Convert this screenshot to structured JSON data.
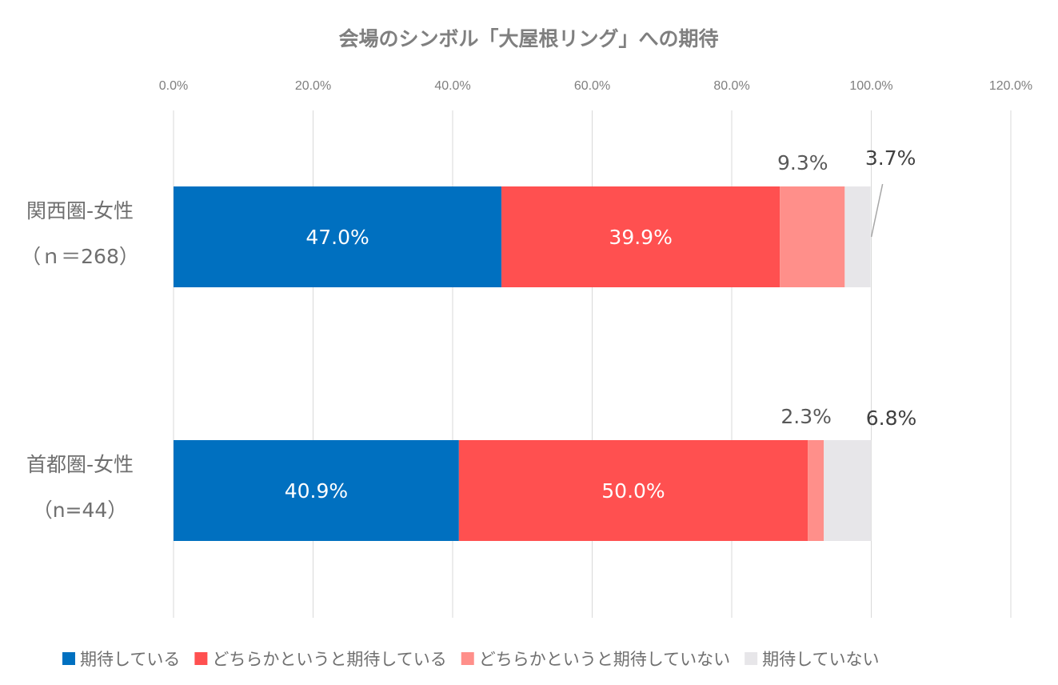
{
  "chart_data": {
    "type": "bar",
    "orientation": "horizontal",
    "stacked": true,
    "title": "会場のシンボル「大屋根リング」への期待",
    "xlim": [
      0,
      120
    ],
    "x_ticks": [
      0,
      20,
      40,
      60,
      80,
      100,
      120
    ],
    "x_tick_labels": [
      "0.0%",
      "20.0%",
      "40.0%",
      "60.0%",
      "80.0%",
      "100.0%",
      "120.0%"
    ],
    "grid": true,
    "legend_position": "bottom",
    "categories": [
      {
        "line1": "関西圏-女性",
        "line2": "（ｎ＝268）"
      },
      {
        "line1": "首都圏-女性",
        "line2": "（n=44）"
      }
    ],
    "series": [
      {
        "name": "期待している",
        "color": "#0070c0",
        "values": [
          47.0,
          40.9
        ],
        "labels": [
          "47.0%",
          "40.9%"
        ],
        "label_position": "inside"
      },
      {
        "name": "どちらかというと期待している",
        "color": "#ff5050",
        "values": [
          39.9,
          50.0
        ],
        "labels": [
          "39.9%",
          "50.0%"
        ],
        "label_position": "inside"
      },
      {
        "name": "どちらかというと期待していない",
        "color": "#ff8f8a",
        "values": [
          9.3,
          2.3
        ],
        "labels": [
          "9.3%",
          "2.3%"
        ],
        "label_position": "above"
      },
      {
        "name": "期待していない",
        "color": "#e7e6e9",
        "values": [
          3.7,
          6.8
        ],
        "labels": [
          "3.7%",
          "6.8%"
        ],
        "label_position": "above-right"
      }
    ]
  }
}
